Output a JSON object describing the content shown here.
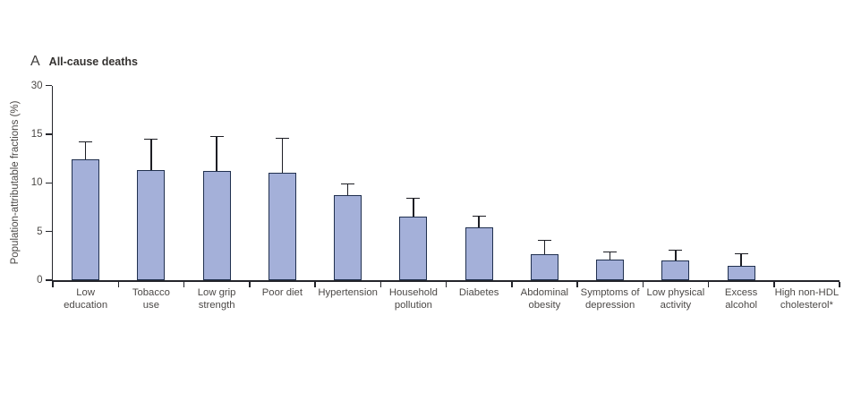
{
  "panel": {
    "letter": "A",
    "title": "All-cause deaths"
  },
  "chart_data": {
    "type": "bar",
    "title": "All-cause deaths",
    "xlabel": "",
    "ylabel": "Population-attributable fractions (%)",
    "ylim": [
      0,
      30
    ],
    "grid": "off",
    "legend": "none",
    "axis_note": "y axis compressed above 15 (ticks 0,5,10,15,30 equally spaced)",
    "yticks": [
      {
        "value": 30,
        "label": "30"
      },
      {
        "value": 15,
        "label": "15"
      },
      {
        "value": 10,
        "label": "10"
      },
      {
        "value": 5,
        "label": "5"
      },
      {
        "value": 0,
        "label": "0"
      }
    ],
    "categories": [
      {
        "label": "Low education",
        "lines": [
          "Low",
          "education"
        ],
        "value": 12.4,
        "upper_ci": 14.2
      },
      {
        "label": "Tobacco use",
        "lines": [
          "Tobacco",
          "use"
        ],
        "value": 11.3,
        "upper_ci": 14.5
      },
      {
        "label": "Low grip strength",
        "lines": [
          "Low grip",
          "strength"
        ],
        "value": 11.2,
        "upper_ci": 14.8
      },
      {
        "label": "Poor diet",
        "lines": [
          "Poor diet"
        ],
        "value": 11.0,
        "upper_ci": 14.6
      },
      {
        "label": "Hypertension",
        "lines": [
          "Hypertension"
        ],
        "value": 8.7,
        "upper_ci": 9.9
      },
      {
        "label": "Household pollution",
        "lines": [
          "Household",
          "pollution"
        ],
        "value": 6.5,
        "upper_ci": 8.4
      },
      {
        "label": "Diabetes",
        "lines": [
          "Diabetes"
        ],
        "value": 5.4,
        "upper_ci": 6.6
      },
      {
        "label": "Abdominal obesity",
        "lines": [
          "Abdominal",
          "obesity"
        ],
        "value": 2.7,
        "upper_ci": 4.1
      },
      {
        "label": "Symptoms of depression",
        "lines": [
          "Symptoms of",
          "depression"
        ],
        "value": 2.1,
        "upper_ci": 2.9
      },
      {
        "label": "Low physical activity",
        "lines": [
          "Low physical",
          "activity"
        ],
        "value": 2.0,
        "upper_ci": 3.1
      },
      {
        "label": "Excess alcohol",
        "lines": [
          "Excess",
          "alcohol"
        ],
        "value": 1.5,
        "upper_ci": 2.7
      },
      {
        "label": "High non-HDL cholesterol*",
        "lines": [
          "High non-HDL",
          "cholesterol*"
        ],
        "value": 0,
        "upper_ci": 0
      }
    ],
    "colors": {
      "bar_fill": "#a4b0d9",
      "bar_border": "#20304f",
      "axis": "#24252b",
      "error_bar": "#1d1e24",
      "text": "#4b4846",
      "background": "#ffffff"
    }
  }
}
